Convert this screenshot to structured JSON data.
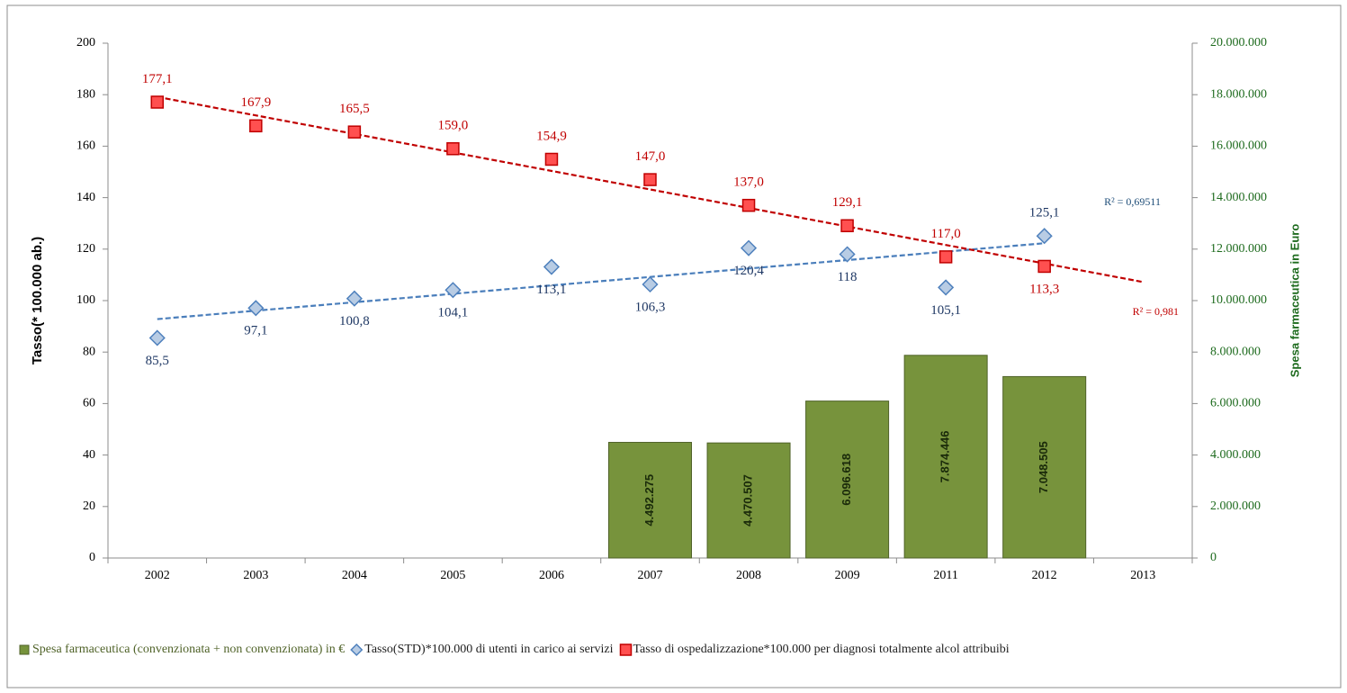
{
  "chart_data": {
    "type": "combo",
    "categories": [
      "2002",
      "2003",
      "2004",
      "2005",
      "2006",
      "2007",
      "2008",
      "2009",
      "2011",
      "2012",
      "2013"
    ],
    "ylabel": "Tasso(* 100.000 ab.)",
    "y2label": "Spesa farmaceutica in Euro",
    "ylim": [
      0,
      200
    ],
    "yticks": [
      0,
      20,
      40,
      60,
      80,
      100,
      120,
      140,
      160,
      180,
      200
    ],
    "y2lim": [
      0,
      20000000
    ],
    "y2ticks": [
      0,
      {
        "value": 2000000,
        "label": "2.000.000"
      },
      {
        "value": 4000000,
        "label": "4.000.000"
      },
      {
        "value": 6000000,
        "label": "6.000.000"
      },
      {
        "value": 8000000,
        "label": "8.000.000"
      },
      {
        "value": 10000000,
        "label": "10.000.000"
      },
      {
        "value": 12000000,
        "label": "12.000.000"
      },
      {
        "value": 14000000,
        "label": "14.000.000"
      },
      {
        "value": 16000000,
        "label": "16.000.000"
      },
      {
        "value": 18000000,
        "label": "18.000.000"
      },
      {
        "value": 20000000,
        "label": "20.000.000"
      }
    ],
    "series": [
      {
        "name": "Spesa farmaceutica (convenzionata + non convenzionata) in €",
        "type": "bar",
        "axis": "y2",
        "color": "#77933c",
        "values": [
          null,
          null,
          null,
          null,
          null,
          4492275,
          4470507,
          6096618,
          7874446,
          7048505,
          null
        ],
        "value_labels": [
          null,
          null,
          null,
          null,
          null,
          "4.492.275",
          "4.470.507",
          "6.096.618",
          "7.874.446",
          "7.048.505",
          null
        ]
      },
      {
        "name": "Tasso(STD)*100.000 di utenti in carico ai servizi",
        "type": "scatter",
        "marker": "diamond",
        "color": "#4f81bd",
        "values": [
          85.5,
          97.1,
          100.8,
          104.1,
          113.1,
          106.3,
          120.4,
          118,
          105.1,
          125.1,
          null
        ],
        "value_labels": [
          "85,5",
          "97,1",
          "100,8",
          "104,1",
          "113,1",
          "106,3",
          "120,4",
          "118",
          "105,1",
          "125,1",
          null
        ],
        "label_positions": [
          "below",
          "below",
          "below",
          "below",
          "below",
          "below",
          "below",
          "below",
          "below",
          "above",
          null
        ],
        "trendline_label": "R² = 0,69511",
        "trendline_forward": 0
      },
      {
        "name": "Tasso di ospedalizzazione*100.000 per diagnosi totalmente alcol attribuibi",
        "type": "scatter",
        "marker": "square",
        "color": "#c00000",
        "values": [
          177.1,
          167.9,
          165.5,
          159.0,
          154.9,
          147.0,
          137.0,
          129.1,
          117.0,
          113.3,
          null
        ],
        "value_labels": [
          "177,1",
          "167,9",
          "165,5",
          "159,0",
          "154,9",
          "147,0",
          "137,0",
          "129,1",
          "117,0",
          "113,3",
          null
        ],
        "label_positions": [
          "above",
          "above",
          "above",
          "above",
          "above",
          "above",
          "above",
          "above",
          "above",
          "below",
          null
        ],
        "trendline_label": "R² = 0,981",
        "trendline_forward": 1
      }
    ],
    "legend": "bottom"
  }
}
